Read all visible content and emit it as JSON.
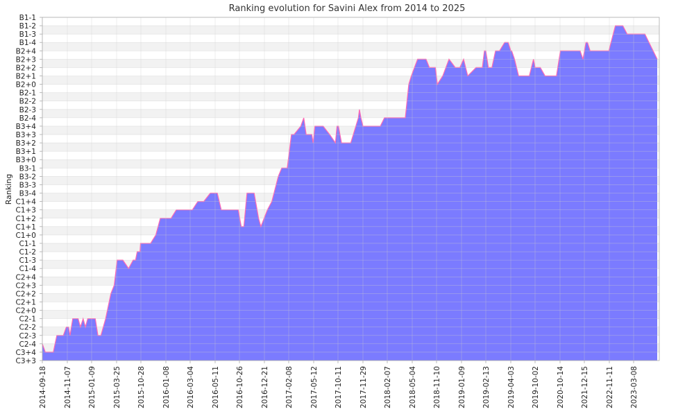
{
  "chart_data": {
    "type": "area",
    "title": "Ranking evolution for Savini Alex from 2014 to 2025",
    "xlabel": "",
    "ylabel": "Ranking",
    "y_categories": [
      "C3+3",
      "C3+4",
      "C2-4",
      "C2-3",
      "C2-2",
      "C2-1",
      "C2+0",
      "C2+1",
      "C2+2",
      "C2+3",
      "C2+4",
      "C1-4",
      "C1-3",
      "C1-2",
      "C1-1",
      "C1+0",
      "C1+1",
      "C1+2",
      "C1+3",
      "C1+4",
      "B3-4",
      "B3-3",
      "B3-2",
      "B3-1",
      "B3+0",
      "B3+1",
      "B3+2",
      "B3+3",
      "B3+4",
      "B2-4",
      "B2-3",
      "B2-2",
      "B2-1",
      "B2+0",
      "B2+1",
      "B2+2",
      "B2+3",
      "B2+4",
      "B1-4",
      "B1-3",
      "B1-2",
      "B1-1"
    ],
    "x_tick_labels": [
      "2014-09-18",
      "2014-11-07",
      "2015-01-09",
      "2015-03-25",
      "2015-10-28",
      "2016-01-08",
      "2016-03-04",
      "2016-05-11",
      "2016-10-26",
      "2016-12-21",
      "2017-02-08",
      "2017-05-12",
      "2017-10-11",
      "2017-11-29",
      "2018-02-07",
      "2018-05-04",
      "2018-11-10",
      "2019-01-09",
      "2019-02-13",
      "2019-04-03",
      "2019-10-02",
      "2020-10-14",
      "2021-12-15",
      "2022-11-11",
      "2023-03-08"
    ],
    "series": [
      {
        "values": [
          [
            "2014-09-18",
            "C2-4"
          ],
          [
            "2014-09-24",
            "C3+4"
          ],
          [
            "2014-10-10",
            "C3+4"
          ],
          [
            "2014-10-17",
            "C2-3"
          ],
          [
            "2014-10-30",
            "C2-3"
          ],
          [
            "2014-11-05",
            "C2-2"
          ],
          [
            "2014-11-10",
            "C2-2"
          ],
          [
            "2014-11-14",
            "C2-3"
          ],
          [
            "2014-11-21",
            "C2-1"
          ],
          [
            "2014-12-05",
            "C2-1"
          ],
          [
            "2014-12-11",
            "C2-2"
          ],
          [
            "2014-12-18",
            "C2-1"
          ],
          [
            "2014-12-24",
            "C2-2"
          ],
          [
            "2014-12-30",
            "C2-1"
          ],
          [
            "2015-01-20",
            "C2-1"
          ],
          [
            "2015-01-28",
            "C2-3"
          ],
          [
            "2015-02-06",
            "C2-3"
          ],
          [
            "2015-02-20",
            "C2-1"
          ],
          [
            "2015-03-08",
            "C2+2"
          ],
          [
            "2015-03-18",
            "C2+3"
          ],
          [
            "2015-03-30",
            "C1-3"
          ],
          [
            "2015-05-20",
            "C1-3"
          ],
          [
            "2015-07-10",
            "C1-4"
          ],
          [
            "2015-08-20",
            "C1-3"
          ],
          [
            "2015-09-10",
            "C1-3"
          ],
          [
            "2015-09-25",
            "C1-2"
          ],
          [
            "2015-10-20",
            "C1-2"
          ],
          [
            "2015-10-25",
            "C1-1"
          ],
          [
            "2015-11-25",
            "C1-1"
          ],
          [
            "2015-12-10",
            "C1+0"
          ],
          [
            "2015-12-23",
            "C1+2"
          ],
          [
            "2016-01-20",
            "C1+2"
          ],
          [
            "2016-02-01",
            "C1+3"
          ],
          [
            "2016-03-10",
            "C1+3"
          ],
          [
            "2016-03-25",
            "C1+4"
          ],
          [
            "2016-04-10",
            "C1+4"
          ],
          [
            "2016-04-28",
            "B3-4"
          ],
          [
            "2016-05-26",
            "B3-4"
          ],
          [
            "2016-06-22",
            "C1+3"
          ],
          [
            "2016-10-18",
            "C1+3"
          ],
          [
            "2016-10-30",
            "C1+1"
          ],
          [
            "2016-11-05",
            "C1+1"
          ],
          [
            "2016-11-12",
            "B3-4"
          ],
          [
            "2016-11-28",
            "B3-4"
          ],
          [
            "2016-12-08",
            "C1+2"
          ],
          [
            "2016-12-13",
            "C1+1"
          ],
          [
            "2016-12-27",
            "C1+3"
          ],
          [
            "2017-01-05",
            "C1+4"
          ],
          [
            "2017-01-18",
            "B3-2"
          ],
          [
            "2017-01-25",
            "B3-1"
          ],
          [
            "2017-02-05",
            "B3-1"
          ],
          [
            "2017-02-18",
            "B3+3"
          ],
          [
            "2017-02-28",
            "B3+3"
          ],
          [
            "2017-03-25",
            "B3+4"
          ],
          [
            "2017-04-05",
            "B2-4"
          ],
          [
            "2017-04-14",
            "B3+3"
          ],
          [
            "2017-05-05",
            "B3+3"
          ],
          [
            "2017-05-10",
            "B3+2"
          ],
          [
            "2017-05-20",
            "B3+4"
          ],
          [
            "2017-07-10",
            "B3+4"
          ],
          [
            "2017-08-20",
            "B3+3"
          ],
          [
            "2017-09-25",
            "B3+2"
          ],
          [
            "2017-10-05",
            "B3+4"
          ],
          [
            "2017-10-12",
            "B3+4"
          ],
          [
            "2017-10-18",
            "B3+2"
          ],
          [
            "2017-11-05",
            "B3+2"
          ],
          [
            "2017-11-20",
            "B2-4"
          ],
          [
            "2017-11-22",
            "B2-3"
          ],
          [
            "2017-11-25",
            "B2-4"
          ],
          [
            "2017-11-29",
            "B3+4"
          ],
          [
            "2018-01-18",
            "B3+4"
          ],
          [
            "2018-01-30",
            "B2-4"
          ],
          [
            "2018-02-07",
            "B2-4"
          ],
          [
            "2018-04-10",
            "B2-4"
          ],
          [
            "2018-04-22",
            "B2+0"
          ],
          [
            "2018-05-01",
            "B2+1"
          ],
          [
            "2018-06-15",
            "B2+3"
          ],
          [
            "2018-08-20",
            "B2+3"
          ],
          [
            "2018-09-15",
            "B2+2"
          ],
          [
            "2018-11-01",
            "B2+2"
          ],
          [
            "2018-11-12",
            "B2+0"
          ],
          [
            "2018-11-25",
            "B2+1"
          ],
          [
            "2018-12-10",
            "B2+3"
          ],
          [
            "2018-12-25",
            "B2+2"
          ],
          [
            "2019-01-05",
            "B2+2"
          ],
          [
            "2019-01-12",
            "B2+3"
          ],
          [
            "2019-01-18",
            "B2+1"
          ],
          [
            "2019-01-30",
            "B2+2"
          ],
          [
            "2019-02-08",
            "B2+2"
          ],
          [
            "2019-02-11",
            "B2+4"
          ],
          [
            "2019-02-13",
            "B2+4"
          ],
          [
            "2019-02-18",
            "B2+2"
          ],
          [
            "2019-02-25",
            "B2+2"
          ],
          [
            "2019-03-04",
            "B2+4"
          ],
          [
            "2019-03-12",
            "B2+4"
          ],
          [
            "2019-03-22",
            "B1-4"
          ],
          [
            "2019-03-29",
            "B1-4"
          ],
          [
            "2019-04-03",
            "B2+4"
          ],
          [
            "2019-04-10",
            "B2+4"
          ],
          [
            "2019-05-01",
            "B2+3"
          ],
          [
            "2019-06-01",
            "B2+1"
          ],
          [
            "2019-08-20",
            "B2+1"
          ],
          [
            "2019-09-20",
            "B2+3"
          ],
          [
            "2019-10-02",
            "B2+2"
          ],
          [
            "2019-12-20",
            "B2+2"
          ],
          [
            "2020-03-01",
            "B2+1"
          ],
          [
            "2020-08-20",
            "B2+1"
          ],
          [
            "2020-10-20",
            "B2+4"
          ],
          [
            "2021-10-01",
            "B2+4"
          ],
          [
            "2021-11-20",
            "B2+3"
          ],
          [
            "2022-01-05",
            "B1-4"
          ],
          [
            "2022-01-25",
            "B1-4"
          ],
          [
            "2022-03-01",
            "B2+4"
          ],
          [
            "2022-11-05",
            "B2+4"
          ],
          [
            "2022-12-10",
            "B1-2"
          ],
          [
            "2023-01-15",
            "B1-2"
          ],
          [
            "2023-02-05",
            "B1-3"
          ],
          [
            "2023-03-08",
            "B1-3"
          ],
          [
            "2023-05-01",
            "B1-3"
          ],
          [
            "2023-07-20",
            "B2+3"
          ],
          [
            "2024-01-20",
            "B2+3"
          ]
        ]
      }
    ],
    "grid": true,
    "legend": "none",
    "colors": {
      "fill": "#7b7bff",
      "line": "#ff69b4",
      "grid": "#cccccc",
      "band_light": "#f2f2f2",
      "band_dark": "#ffffff",
      "axis": "#aaaaaa"
    }
  }
}
